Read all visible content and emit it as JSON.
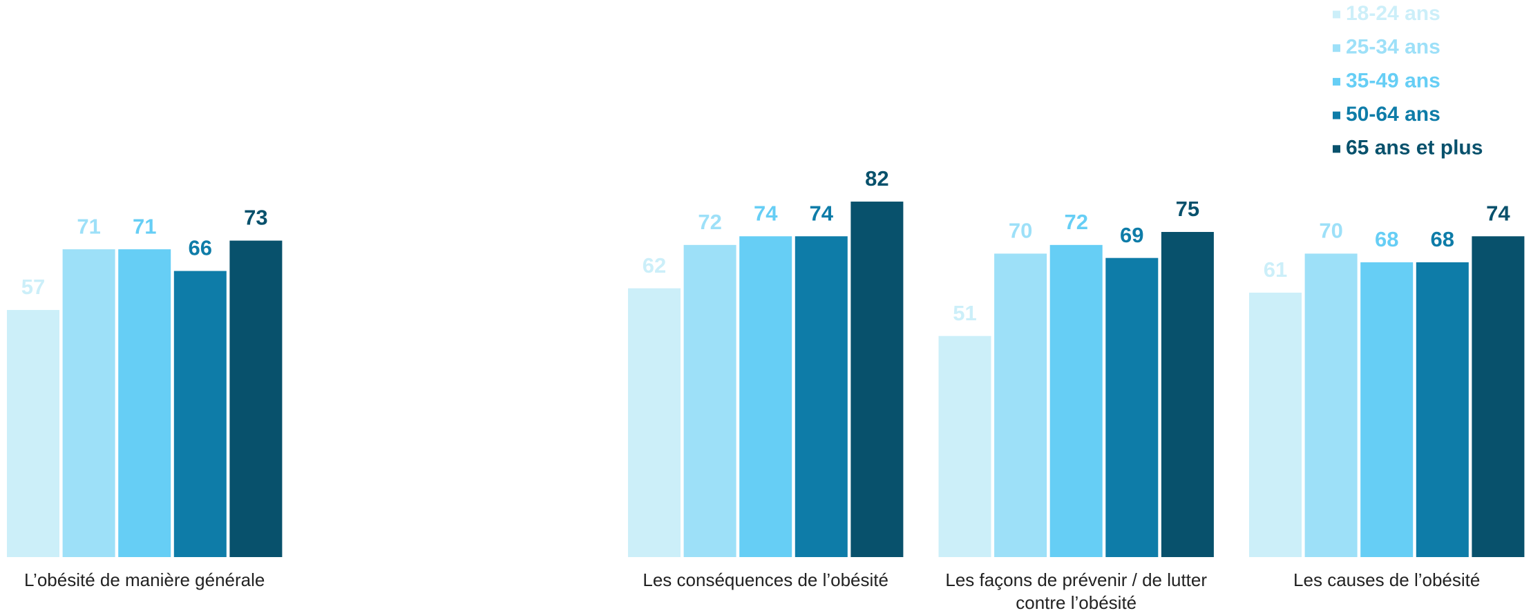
{
  "chart_data": {
    "type": "bar",
    "categories": [
      "L’obésité de manière générale",
      null,
      "Les conséquences de l’obésité",
      "Les façons de prévenir / de lutter contre l’obésité",
      "Les causes de l’obésité"
    ],
    "series": [
      {
        "name": "18-24 ans",
        "color": "#cceff9",
        "values": [
          57,
          null,
          62,
          51,
          61
        ]
      },
      {
        "name": "25-34 ans",
        "color": "#9de0f8",
        "values": [
          71,
          null,
          72,
          70,
          70
        ]
      },
      {
        "name": "35-49 ans",
        "color": "#66cef5",
        "values": [
          71,
          null,
          74,
          72,
          68
        ]
      },
      {
        "name": "50-64 ans",
        "color": "#0e7ca8",
        "values": [
          66,
          null,
          74,
          69,
          68
        ]
      },
      {
        "name": "65 ans et plus",
        "color": "#08516c",
        "values": [
          73,
          null,
          82,
          75,
          74
        ]
      }
    ],
    "ylim": [
      0,
      100
    ],
    "legend": "top-right"
  }
}
